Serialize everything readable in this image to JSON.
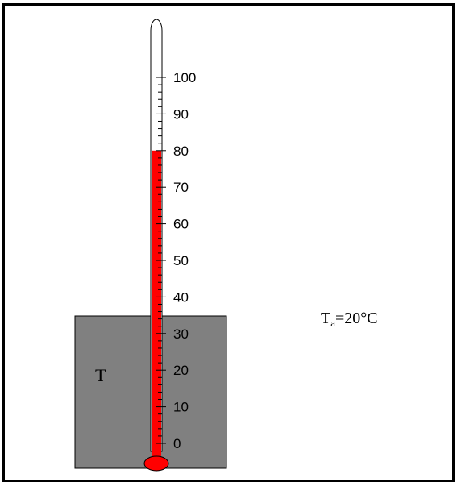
{
  "figure": {
    "block_label": "T",
    "ambient": {
      "symbol": "T",
      "subscript": "a",
      "value": "=20°C"
    }
  },
  "thermometer": {
    "scale_min": 0,
    "scale_max": 100,
    "reading": 80,
    "major_step": 10,
    "minor_per_major": 5,
    "tick_labels": [
      "0",
      "10",
      "20",
      "30",
      "40",
      "50",
      "60",
      "70",
      "80",
      "90",
      "100"
    ]
  },
  "colors": {
    "block": "#808080",
    "liquid": "#ff0000",
    "frame": "#000000",
    "background": "#ffffff"
  }
}
